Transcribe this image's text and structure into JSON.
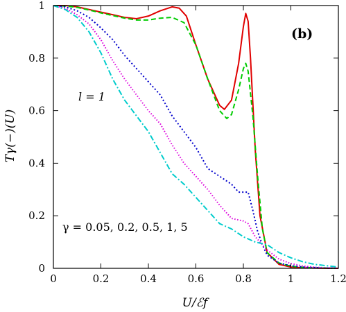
{
  "chart_data": {
    "type": "line",
    "title": "",
    "xlabel": "U/ℰf",
    "ylabel": "Tγ(−)(U)",
    "xlim": [
      0,
      1.2
    ],
    "ylim": [
      0,
      1
    ],
    "xticks": [
      0,
      0.2,
      0.4,
      0.6,
      0.8,
      1,
      1.2
    ],
    "xtick_labels": [
      "0",
      "0.2",
      "0.4",
      "0.6",
      "0.8",
      "1",
      "1.2"
    ],
    "yticks": [
      0,
      0.2,
      0.4,
      0.6,
      0.8,
      1
    ],
    "ytick_labels": [
      "0",
      "0.2",
      "0.4",
      "0.6",
      "0.8",
      "1"
    ],
    "grid": false,
    "legend": "none",
    "annotations": [
      {
        "text": "l = 1"
      },
      {
        "text": "γ = 0.05,  0.2,  0.5,  1,  5"
      },
      {
        "text": "(b)"
      }
    ],
    "series": [
      {
        "color": "#e00000",
        "dash": "solid",
        "x": [
          0,
          0.05,
          0.1,
          0.15,
          0.2,
          0.25,
          0.3,
          0.35,
          0.4,
          0.45,
          0.5,
          0.53,
          0.56,
          0.6,
          0.65,
          0.7,
          0.72,
          0.75,
          0.78,
          0.8,
          0.81,
          0.82,
          0.83,
          0.85,
          0.87,
          0.9,
          0.95,
          1,
          1.05,
          1.1,
          1.15,
          1.2
        ],
        "y": [
          1,
          1,
          0.995,
          0.985,
          0.975,
          0.965,
          0.955,
          0.95,
          0.96,
          0.98,
          0.995,
          0.99,
          0.96,
          0.85,
          0.72,
          0.62,
          0.605,
          0.64,
          0.78,
          0.92,
          0.97,
          0.94,
          0.8,
          0.45,
          0.2,
          0.06,
          0.015,
          0.005,
          0.002,
          0.001,
          0,
          0
        ]
      },
      {
        "color": "#00cc00",
        "dash": "7,4",
        "x": [
          0,
          0.05,
          0.1,
          0.15,
          0.2,
          0.25,
          0.3,
          0.35,
          0.4,
          0.45,
          0.5,
          0.55,
          0.6,
          0.65,
          0.7,
          0.73,
          0.75,
          0.78,
          0.8,
          0.81,
          0.82,
          0.84,
          0.86,
          0.88,
          0.9,
          0.95,
          1,
          1.05,
          1.1,
          1.15,
          1.2
        ],
        "y": [
          1,
          0.998,
          0.993,
          0.983,
          0.972,
          0.962,
          0.952,
          0.945,
          0.945,
          0.952,
          0.955,
          0.935,
          0.85,
          0.72,
          0.6,
          0.57,
          0.585,
          0.68,
          0.76,
          0.78,
          0.75,
          0.58,
          0.35,
          0.15,
          0.06,
          0.02,
          0.008,
          0.004,
          0.002,
          0.001,
          0
        ]
      },
      {
        "color": "#0000cc",
        "dash": "2,3",
        "x": [
          0,
          0.05,
          0.1,
          0.15,
          0.2,
          0.25,
          0.3,
          0.35,
          0.4,
          0.45,
          0.5,
          0.55,
          0.6,
          0.65,
          0.7,
          0.75,
          0.77,
          0.78,
          0.8,
          0.82,
          0.84,
          0.86,
          0.88,
          0.9,
          0.95,
          1,
          1.05,
          1.1,
          1.15,
          1.2
        ],
        "y": [
          1,
          0.995,
          0.98,
          0.955,
          0.915,
          0.87,
          0.81,
          0.76,
          0.71,
          0.66,
          0.58,
          0.52,
          0.46,
          0.38,
          0.35,
          0.32,
          0.3,
          0.29,
          0.29,
          0.29,
          0.22,
          0.14,
          0.09,
          0.05,
          0.02,
          0.01,
          0.005,
          0.003,
          0.001,
          0
        ]
      },
      {
        "color": "#dd00dd",
        "dash": "1.5,2.5",
        "x": [
          0,
          0.05,
          0.1,
          0.15,
          0.2,
          0.25,
          0.3,
          0.35,
          0.4,
          0.45,
          0.5,
          0.55,
          0.6,
          0.65,
          0.7,
          0.75,
          0.8,
          0.82,
          0.85,
          0.88,
          0.9,
          0.95,
          1,
          1.05,
          1.1,
          1.15,
          1.2
        ],
        "y": [
          1,
          0.99,
          0.965,
          0.93,
          0.87,
          0.79,
          0.72,
          0.66,
          0.6,
          0.55,
          0.47,
          0.4,
          0.35,
          0.3,
          0.24,
          0.19,
          0.18,
          0.17,
          0.12,
          0.09,
          0.07,
          0.035,
          0.018,
          0.009,
          0.004,
          0.002,
          0.001
        ]
      },
      {
        "color": "#00cccc",
        "dash": "8,3,2,3",
        "x": [
          0,
          0.05,
          0.1,
          0.15,
          0.2,
          0.25,
          0.3,
          0.35,
          0.4,
          0.45,
          0.5,
          0.55,
          0.6,
          0.65,
          0.7,
          0.75,
          0.8,
          0.85,
          0.9,
          0.95,
          1,
          1.05,
          1.1,
          1.15,
          1.2
        ],
        "y": [
          1,
          0.985,
          0.955,
          0.9,
          0.82,
          0.72,
          0.64,
          0.58,
          0.52,
          0.44,
          0.36,
          0.32,
          0.27,
          0.22,
          0.17,
          0.15,
          0.12,
          0.1,
          0.09,
          0.06,
          0.04,
          0.025,
          0.015,
          0.01,
          0.005
        ]
      }
    ]
  }
}
